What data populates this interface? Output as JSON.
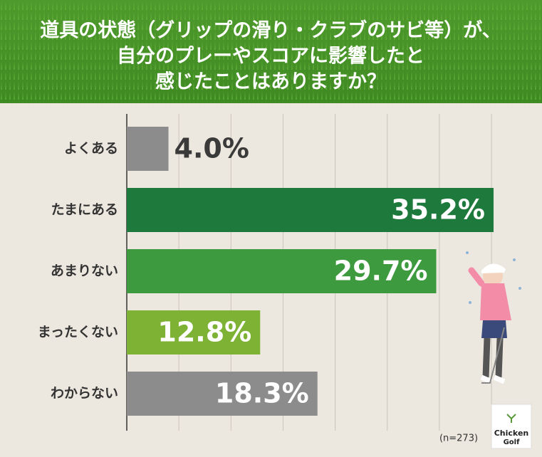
{
  "chart_data": {
    "type": "bar",
    "orientation": "horizontal",
    "title": [
      "道具の状態（グリップの滑り・クラブのサビ等）が、",
      "自分のプレーやスコアに影響したと",
      "感じたことはありますか？"
    ],
    "categories": [
      "よくある",
      "たまにある",
      "あまりない",
      "まったくない",
      "わからない"
    ],
    "values": [
      4.0,
      35.2,
      29.7,
      12.8,
      18.3
    ],
    "value_labels": [
      "4.0%",
      "35.2%",
      "29.7%",
      "12.8%",
      "18.3%"
    ],
    "colors": [
      "#8c8c8c",
      "#1e7a3c",
      "#3d9a3e",
      "#7db234",
      "#8c8c8c"
    ],
    "xlim": [
      0,
      40
    ],
    "xticks": [
      5,
      10,
      15,
      20,
      25,
      30,
      35
    ],
    "grid": true,
    "note": "(n=273)",
    "logo": [
      "Chicken",
      "Golf"
    ]
  }
}
